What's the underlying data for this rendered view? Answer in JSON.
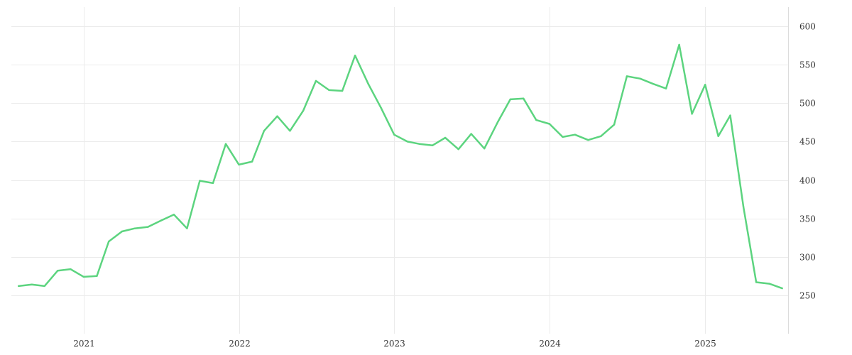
{
  "chart_data": {
    "type": "line",
    "title": "",
    "xlabel": "",
    "ylabel": "",
    "x_axis": {
      "type": "date",
      "range": [
        "2020-07-15",
        "2025-07-15"
      ],
      "tick_labels": [
        "2021",
        "2022",
        "2023",
        "2024",
        "2025"
      ],
      "tick_dates": [
        "2021-01-01",
        "2022-01-01",
        "2023-01-01",
        "2024-01-01",
        "2025-01-01"
      ]
    },
    "y_axis": {
      "position": "right",
      "range": [
        200,
        625
      ],
      "tick_values": [
        250,
        300,
        350,
        400,
        450,
        500,
        550,
        600
      ],
      "tick_labels": [
        "250",
        "300",
        "350",
        "400",
        "450",
        "500",
        "550",
        "600"
      ]
    },
    "grid": true,
    "legend": "none",
    "colors": {
      "series": "#5cd47f"
    },
    "series": [
      {
        "x": [
          "2020-08-01",
          "2020-09-01",
          "2020-10-01",
          "2020-11-01",
          "2020-12-01",
          "2021-01-01",
          "2021-02-01",
          "2021-03-01",
          "2021-04-01",
          "2021-05-01",
          "2021-06-01",
          "2021-07-01",
          "2021-08-01",
          "2021-09-01",
          "2021-10-01",
          "2021-11-01",
          "2021-12-01",
          "2022-01-01",
          "2022-02-01",
          "2022-03-01",
          "2022-04-01",
          "2022-05-01",
          "2022-06-01",
          "2022-07-01",
          "2022-08-01",
          "2022-09-01",
          "2022-10-01",
          "2022-11-01",
          "2022-12-01",
          "2023-01-01",
          "2023-02-01",
          "2023-03-01",
          "2023-04-01",
          "2023-05-01",
          "2023-06-01",
          "2023-07-01",
          "2023-08-01",
          "2023-09-01",
          "2023-10-01",
          "2023-11-01",
          "2023-12-01",
          "2024-01-01",
          "2024-02-01",
          "2024-03-01",
          "2024-04-01",
          "2024-05-01",
          "2024-06-01",
          "2024-07-01",
          "2024-08-01",
          "2024-09-01",
          "2024-10-01",
          "2024-11-01",
          "2024-12-01",
          "2025-01-01",
          "2025-02-01",
          "2025-03-01",
          "2025-04-01",
          "2025-05-01",
          "2025-06-01",
          "2025-07-01"
        ],
        "values": [
          262,
          264,
          262,
          282,
          284,
          274,
          275,
          320,
          333,
          337,
          339,
          347,
          355,
          337,
          399,
          396,
          447,
          420,
          424,
          464,
          483,
          464,
          490,
          529,
          517,
          516,
          562,
          525,
          494,
          459,
          450,
          447,
          445,
          455,
          440,
          460,
          441,
          475,
          505,
          506,
          478,
          473,
          456,
          459,
          452,
          457,
          472,
          535,
          532,
          525,
          519,
          576,
          486,
          524,
          457,
          484,
          365,
          267,
          265,
          259
        ]
      }
    ]
  }
}
